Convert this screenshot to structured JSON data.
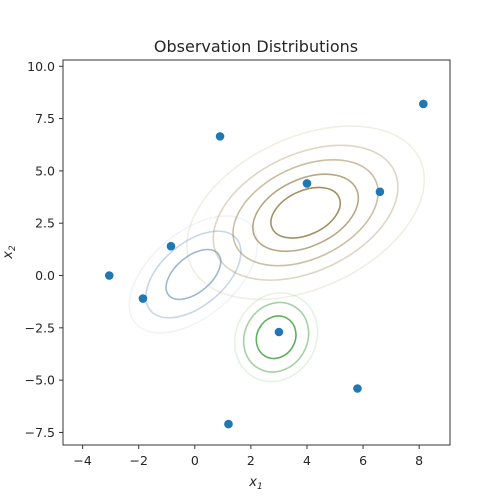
{
  "chart_data": {
    "type": "scatter",
    "title": "Observation Distributions",
    "xlabel": "x",
    "xlabel_sub": "1",
    "ylabel": "x",
    "ylabel_sub": "2",
    "xlim": [
      -4.7,
      9.1
    ],
    "ylim": [
      -8.1,
      10.3
    ],
    "xticks": [
      -4,
      -2,
      0,
      2,
      4,
      6,
      8
    ],
    "xtick_labels": [
      "−4",
      "−2",
      "0",
      "2",
      "4",
      "6",
      "8"
    ],
    "yticks": [
      -7.5,
      -5.0,
      -2.5,
      0.0,
      2.5,
      5.0,
      7.5,
      10.0
    ],
    "ytick_labels": [
      "−7.5",
      "−5.0",
      "−2.5",
      "0.0",
      "2.5",
      "5.0",
      "7.5",
      "10.0"
    ],
    "grid": false,
    "points": {
      "color": "#1f77b4",
      "x": [
        -3.05,
        -1.85,
        -0.85,
        0.9,
        1.2,
        3.0,
        4.0,
        5.8,
        6.6,
        8.15
      ],
      "y": [
        0.0,
        -1.1,
        1.4,
        6.65,
        -7.1,
        -2.7,
        4.4,
        -5.4,
        4.0,
        8.2
      ]
    },
    "contours": [
      {
        "name": "blue",
        "color": "#9ab5d0",
        "center": [
          -0.05,
          0.05
        ],
        "radii": [
          1.15,
          2.0,
          2.7
        ],
        "sigma": [
          1.0,
          0.75
        ],
        "angle_deg": -40
      },
      {
        "name": "green",
        "color": "#5aab5a",
        "center": [
          2.9,
          -2.95
        ],
        "radii": [
          1.1,
          1.8,
          2.3
        ],
        "sigma": [
          0.62,
          0.95
        ],
        "angle_deg": 30
      },
      {
        "name": "gold",
        "color": "#a08a5a",
        "center": [
          3.95,
          3.0
        ],
        "radii": [
          1.05,
          1.6,
          2.2,
          2.8,
          3.6
        ],
        "sigma": [
          1.25,
          1.0
        ],
        "angle_deg": -25
      }
    ]
  }
}
